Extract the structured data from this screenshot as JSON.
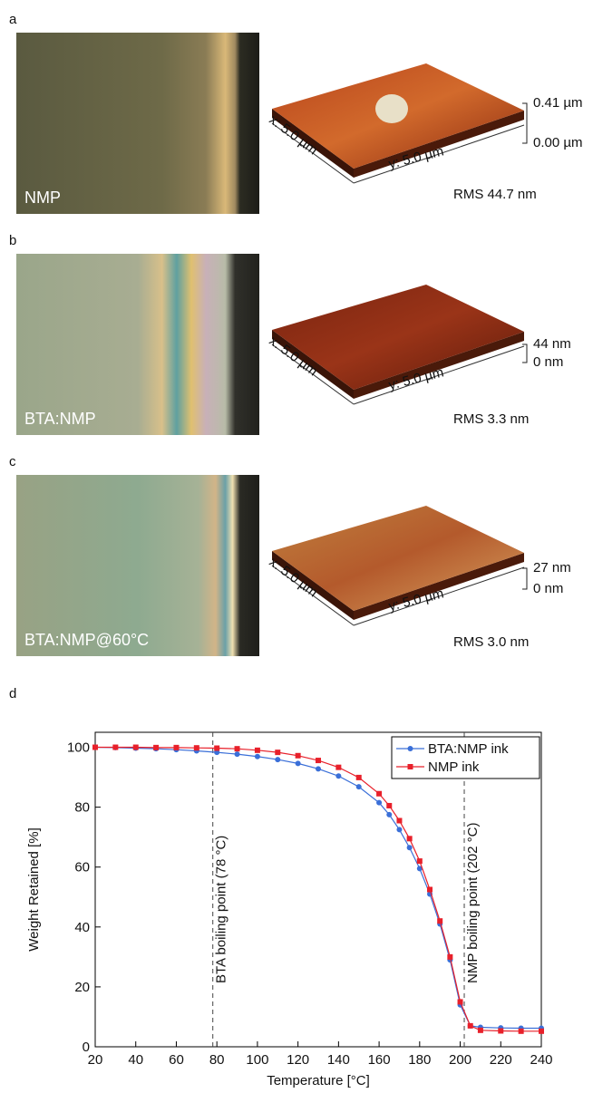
{
  "panels": [
    {
      "label": "a",
      "image_label": "NMP",
      "afm": {
        "x_axis": "x: 5.0 µm",
        "y_axis": "y: 5.0 µm",
        "z_max": "0.41 µm",
        "z_min": "0.00 µm",
        "rms": "RMS 44.7 nm"
      }
    },
    {
      "label": "b",
      "image_label": "BTA:NMP",
      "afm": {
        "x_axis": "x: 5.0 µm",
        "y_axis": "y: 5.0 µm",
        "z_max": "44 nm",
        "z_min": "0 nm",
        "rms": "RMS 3.3 nm"
      }
    },
    {
      "label": "c",
      "image_label": "BTA:NMP@60°C",
      "afm": {
        "x_axis": "x: 5.0 µm",
        "y_axis": "y: 5.0 µm",
        "z_max": "27 nm",
        "z_min": "0 nm",
        "rms": "RMS 3.0 nm"
      }
    }
  ],
  "chart_data": {
    "type": "line",
    "panel_label": "d",
    "x_label": "Temperature [°C]",
    "y_label": "Weight Retained [%]",
    "x": [
      20,
      30,
      40,
      50,
      60,
      70,
      80,
      90,
      100,
      110,
      120,
      130,
      140,
      150,
      160,
      165,
      170,
      175,
      180,
      185,
      190,
      195,
      200,
      205,
      210,
      220,
      230,
      240
    ],
    "series": [
      {
        "name": "BTA:NMP ink",
        "color": "#3a6fd8",
        "marker": "circle",
        "values": [
          100,
          99.9,
          99.7,
          99.5,
          99.2,
          98.8,
          98.3,
          97.7,
          96.9,
          95.9,
          94.6,
          92.8,
          90.4,
          86.8,
          81.5,
          77.5,
          72.5,
          66.5,
          59.5,
          51,
          41,
          29,
          14,
          7,
          6.5,
          6.3,
          6.2,
          6.2
        ]
      },
      {
        "name": "NMP ink",
        "color": "#e8202a",
        "marker": "square",
        "values": [
          100,
          100,
          100,
          99.9,
          99.9,
          99.8,
          99.7,
          99.5,
          99,
          98.3,
          97.2,
          95.6,
          93.3,
          89.9,
          84.5,
          80.5,
          75.5,
          69.5,
          62,
          52.5,
          42,
          30,
          15,
          7,
          5.5,
          5.3,
          5.2,
          5.2
        ]
      }
    ],
    "annotations": [
      {
        "x": 78,
        "text": "BTA boiling point (78 °C)"
      },
      {
        "x": 202,
        "text": "NMP boiling point (202 °C)"
      }
    ],
    "xlim": [
      20,
      240
    ],
    "xticks": [
      20,
      40,
      60,
      80,
      100,
      120,
      140,
      160,
      180,
      200,
      220,
      240
    ],
    "ylim": [
      0,
      105
    ],
    "yticks": [
      0,
      20,
      40,
      60,
      80,
      100
    ],
    "legend": "top-right"
  }
}
